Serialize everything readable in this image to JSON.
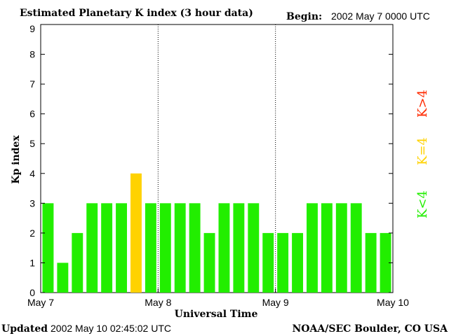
{
  "header": {
    "title": "Estimated Planetary K index (3 hour data)",
    "begin_label": "Begin:",
    "begin_value": "2002 May 7 0000 UTC"
  },
  "footer": {
    "updated_label": "Updated",
    "updated_value": "2002 May 10 02:45:02 UTC",
    "source": "NOAA/SEC Boulder, CO USA"
  },
  "legend": {
    "high": {
      "label": "K>4",
      "color": "#ff2a00"
    },
    "equal": {
      "label": "K=4",
      "color": "#ffd200"
    },
    "low": {
      "label": "K<4",
      "color": "#22ee00"
    }
  },
  "chart_data": {
    "type": "bar",
    "title": "Estimated Planetary K index (3 hour data)",
    "xlabel": "Universal Time",
    "ylabel": "Kp index",
    "ylim": [
      0,
      9
    ],
    "yticks": [
      "0",
      "1",
      "2",
      "3",
      "4",
      "5",
      "6",
      "7",
      "8",
      "9"
    ],
    "xticks": [
      "May 7",
      "May 8",
      "May 9",
      "May 10"
    ],
    "bin_hours": 3,
    "values": [
      3,
      1,
      2,
      3,
      3,
      3,
      4,
      3,
      3,
      3,
      3,
      2,
      3,
      3,
      3,
      2,
      2,
      2,
      3,
      3,
      3,
      3,
      2,
      2
    ],
    "colors": {
      "below_4": "#22ee00",
      "equal_4": "#ffd200",
      "above_4": "#ff2a00"
    },
    "day_dividers": "dotted"
  }
}
